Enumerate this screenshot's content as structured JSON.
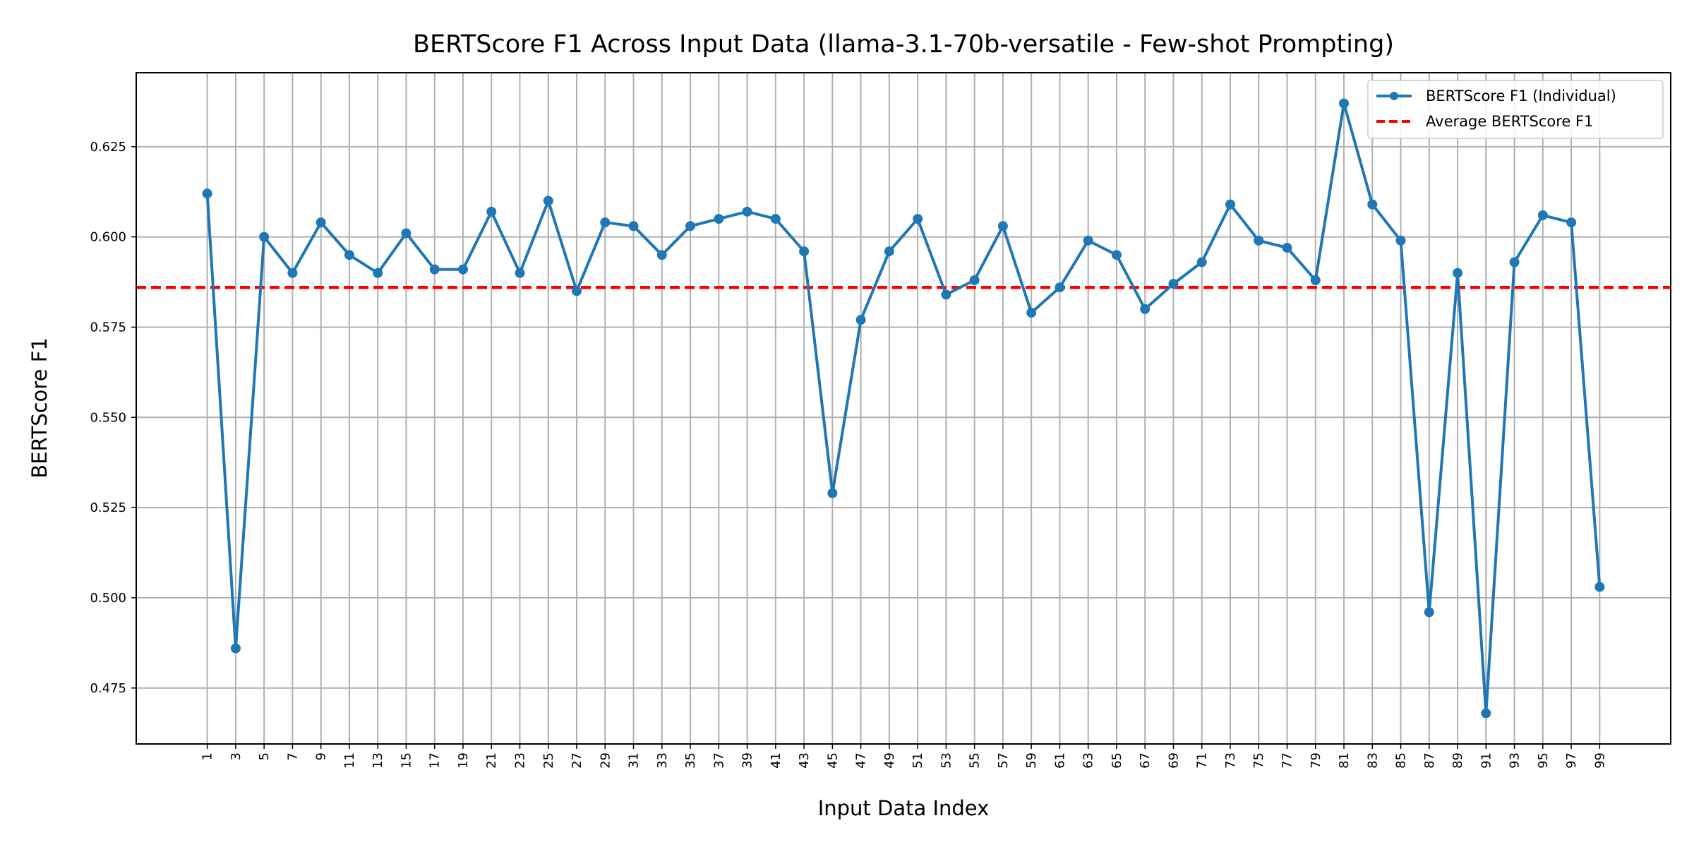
{
  "chart_data": {
    "type": "line",
    "title": "BERTScore F1 Across Input Data (llama-3.1-70b-versatile - Few-shot Prompting)",
    "xlabel": "Input Data Index",
    "ylabel": "BERTScore F1",
    "xlim": [
      -4,
      104
    ],
    "ylim": [
      0.4595,
      0.6455
    ],
    "x_ticks": [
      1,
      3,
      5,
      7,
      9,
      11,
      13,
      15,
      17,
      19,
      21,
      23,
      25,
      27,
      29,
      31,
      33,
      35,
      37,
      39,
      41,
      43,
      45,
      47,
      49,
      51,
      53,
      55,
      57,
      59,
      61,
      63,
      65,
      67,
      69,
      71,
      73,
      75,
      77,
      79,
      81,
      83,
      85,
      87,
      89,
      91,
      93,
      95,
      97,
      99
    ],
    "y_ticks": [
      0.475,
      0.5,
      0.525,
      0.55,
      0.575,
      0.6,
      0.625
    ],
    "y_tick_labels": [
      "0.475",
      "0.500",
      "0.525",
      "0.550",
      "0.575",
      "0.600",
      "0.625"
    ],
    "grid": true,
    "legend_position": "top-right",
    "series": [
      {
        "name": "BERTScore F1 (Individual)",
        "style": "solid line with dot markers",
        "color": "#1f77b4",
        "x": [
          1,
          3,
          5,
          7,
          9,
          11,
          13,
          15,
          17,
          19,
          21,
          23,
          25,
          27,
          29,
          31,
          33,
          35,
          37,
          39,
          41,
          43,
          45,
          47,
          49,
          51,
          53,
          55,
          57,
          59,
          61,
          63,
          65,
          67,
          69,
          71,
          73,
          75,
          77,
          79,
          81,
          83,
          85,
          87,
          89,
          91,
          93,
          95,
          97,
          99
        ],
        "values": [
          0.612,
          0.486,
          0.6,
          0.59,
          0.604,
          0.595,
          0.59,
          0.601,
          0.591,
          0.591,
          0.607,
          0.59,
          0.61,
          0.585,
          0.604,
          0.603,
          0.595,
          0.603,
          0.605,
          0.607,
          0.605,
          0.596,
          0.529,
          0.577,
          0.596,
          0.605,
          0.584,
          0.588,
          0.603,
          0.579,
          0.586,
          0.599,
          0.595,
          0.58,
          0.587,
          0.593,
          0.609,
          0.599,
          0.597,
          0.588,
          0.637,
          0.609,
          0.599,
          0.496,
          0.59,
          0.468,
          0.593,
          0.606,
          0.604,
          0.503
        ]
      },
      {
        "name": "Average BERTScore F1",
        "style": "dashed horizontal line",
        "color": "#ff0000",
        "value": 0.586
      }
    ]
  }
}
